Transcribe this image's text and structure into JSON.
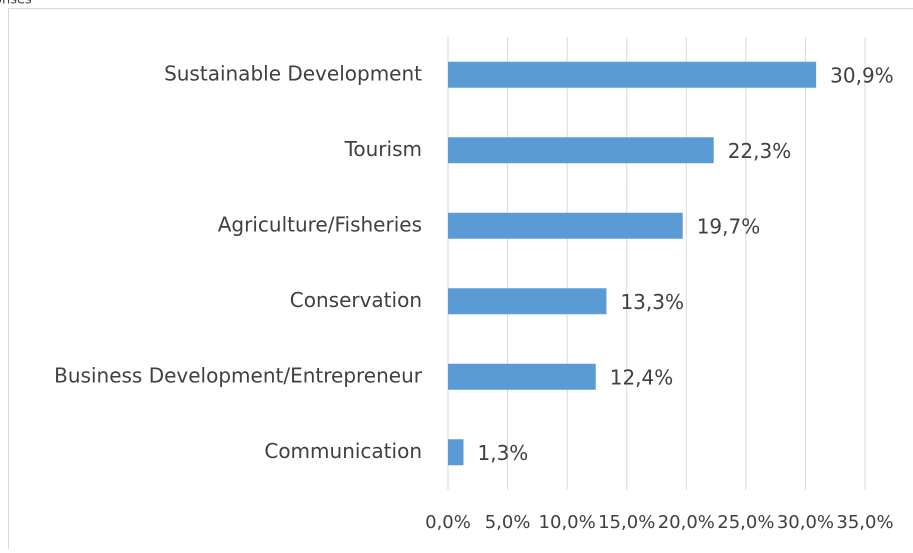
{
  "chart_data": {
    "type": "bar",
    "orientation": "horizontal",
    "title": "onses",
    "categories": [
      "Sustainable Development",
      "Tourism",
      "Agriculture/Fisheries",
      "Conservation",
      "Business Development/Entrepreneur",
      "Communication"
    ],
    "values": [
      30.9,
      22.3,
      19.7,
      13.3,
      12.4,
      1.3
    ],
    "value_labels": [
      "30,9%",
      "22,3%",
      "19,7%",
      "13,3%",
      "12,4%",
      "1,3%"
    ],
    "color": "#5b9bd5",
    "xlim": [
      0,
      35
    ],
    "xticks": [
      {
        "value": 0,
        "label": "0,0%"
      },
      {
        "value": 5,
        "label": "5,0%"
      },
      {
        "value": 10,
        "label": "10,0%"
      },
      {
        "value": 15,
        "label": "15,0%"
      },
      {
        "value": 20,
        "label": "20,0%"
      },
      {
        "value": 25,
        "label": "25,0%"
      },
      {
        "value": 30,
        "label": "30,0%"
      },
      {
        "value": 35,
        "label": "35,0%"
      }
    ],
    "grid": true
  }
}
